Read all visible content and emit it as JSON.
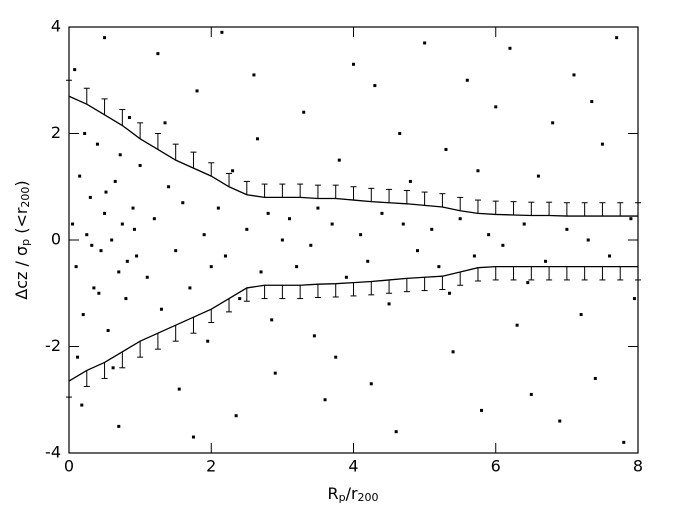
{
  "chart_data": {
    "type": "scatter",
    "xlabel": [
      {
        "text": "R"
      },
      {
        "text": "p",
        "sub": true
      },
      {
        "text": "/r"
      },
      {
        "text": "200",
        "sub": true
      }
    ],
    "ylabel": [
      {
        "text": "Δcz / σ"
      },
      {
        "text": "p",
        "sub": true
      },
      {
        "text": " (<r"
      },
      {
        "text": "200",
        "sub": true
      },
      {
        "text": ")"
      }
    ],
    "xlim": [
      0,
      8
    ],
    "ylim": [
      -4,
      4
    ],
    "xticks": [
      0,
      2,
      4,
      6,
      8
    ],
    "yticks": [
      -4,
      -2,
      0,
      2,
      4
    ],
    "color": "#000000",
    "x": [
      0.05,
      0.1,
      0.15,
      0.2,
      0.25,
      0.3,
      0.35,
      0.4,
      0.45,
      0.5,
      0.55,
      0.6,
      0.65,
      0.7,
      0.75,
      0.8,
      0.85,
      0.9,
      0.95,
      1.0,
      0.12,
      0.22,
      0.32,
      0.42,
      0.52,
      0.62,
      0.72,
      0.82,
      0.92,
      0.08,
      0.18,
      0.5,
      0.7,
      1.1,
      1.2,
      1.3,
      1.4,
      1.5,
      1.6,
      1.7,
      1.8,
      1.9,
      2.0,
      1.25,
      1.55,
      1.75,
      1.35,
      1.95,
      2.1,
      2.2,
      2.3,
      2.4,
      2.5,
      2.6,
      2.7,
      2.8,
      2.9,
      3.0,
      2.35,
      2.65,
      2.85,
      2.15,
      3.1,
      3.2,
      3.3,
      3.4,
      3.5,
      3.6,
      3.7,
      3.8,
      3.9,
      4.0,
      3.45,
      3.75,
      4.1,
      4.2,
      4.3,
      4.4,
      4.5,
      4.6,
      4.7,
      4.8,
      4.9,
      5.0,
      4.25,
      4.65,
      5.1,
      5.2,
      5.3,
      5.4,
      5.5,
      5.6,
      5.7,
      5.8,
      5.9,
      6.0,
      5.35,
      5.75,
      6.1,
      6.2,
      6.3,
      6.4,
      6.5,
      6.6,
      6.7,
      6.8,
      6.9,
      7.0,
      6.45,
      7.1,
      7.2,
      7.3,
      7.4,
      7.5,
      7.6,
      7.7,
      7.8,
      7.9,
      7.95,
      7.35
    ],
    "values": [
      0.3,
      -0.5,
      1.2,
      -1.4,
      0.1,
      0.8,
      -0.9,
      1.8,
      -0.2,
      0.5,
      -1.7,
      0.0,
      1.1,
      -0.6,
      0.3,
      -1.1,
      2.3,
      0.6,
      -0.3,
      1.4,
      -2.2,
      2.0,
      -0.1,
      -1.0,
      0.9,
      -2.4,
      1.6,
      -0.4,
      0.2,
      3.2,
      -3.1,
      3.8,
      -3.5,
      -0.7,
      0.4,
      -1.3,
      1.0,
      -0.2,
      0.7,
      -0.9,
      2.8,
      0.1,
      -0.5,
      3.5,
      -2.8,
      -3.7,
      2.2,
      -1.9,
      0.6,
      -0.3,
      1.3,
      -1.1,
      0.2,
      3.1,
      -0.6,
      0.5,
      -2.5,
      0.0,
      -3.3,
      1.9,
      -1.5,
      3.9,
      0.4,
      -0.5,
      2.4,
      -0.1,
      0.6,
      -3.0,
      0.3,
      1.5,
      -0.7,
      3.3,
      -1.8,
      -2.2,
      0.1,
      -0.4,
      2.9,
      0.5,
      -1.2,
      -3.6,
      0.3,
      1.1,
      -0.2,
      3.7,
      -2.7,
      2.0,
      0.2,
      -0.5,
      1.7,
      -2.1,
      0.4,
      3.0,
      -0.3,
      -3.2,
      0.1,
      2.5,
      -1.0,
      1.3,
      -0.1,
      3.6,
      -1.6,
      0.3,
      -2.9,
      1.2,
      -0.4,
      2.2,
      -3.4,
      0.2,
      -0.8,
      3.1,
      -1.4,
      0.0,
      -2.6,
      1.8,
      -0.3,
      3.8,
      -3.8,
      0.4,
      -1.1,
      2.6
    ],
    "lines": [
      {
        "side": "upper",
        "x": [
          0,
          0.25,
          0.5,
          0.75,
          1,
          1.25,
          1.5,
          1.75,
          2,
          2.25,
          2.5,
          2.75,
          3,
          3.25,
          3.5,
          3.75,
          4,
          4.25,
          4.5,
          4.75,
          5,
          5.25,
          5.5,
          5.75,
          6,
          6.25,
          6.5,
          6.75,
          7,
          7.25,
          7.5,
          7.75,
          8
        ],
        "values": [
          2.7,
          2.55,
          2.35,
          2.15,
          1.9,
          1.7,
          1.5,
          1.35,
          1.2,
          1.0,
          0.85,
          0.8,
          0.8,
          0.8,
          0.78,
          0.78,
          0.75,
          0.72,
          0.7,
          0.68,
          0.65,
          0.62,
          0.55,
          0.5,
          0.48,
          0.47,
          0.46,
          0.46,
          0.45,
          0.45,
          0.45,
          0.45,
          0.45
        ],
        "errors": [
          0.3,
          0.3,
          0.3,
          0.3,
          0.3,
          0.3,
          0.3,
          0.3,
          0.25,
          0.25,
          0.25,
          0.25,
          0.25,
          0.25,
          0.25,
          0.25,
          0.25,
          0.25,
          0.25,
          0.25,
          0.25,
          0.25,
          0.25,
          0.25,
          0.25,
          0.25,
          0.25,
          0.25,
          0.25,
          0.25,
          0.25,
          0.25,
          0.25
        ]
      },
      {
        "side": "lower",
        "x": [
          0,
          0.25,
          0.5,
          0.75,
          1,
          1.25,
          1.5,
          1.75,
          2,
          2.25,
          2.5,
          2.75,
          3,
          3.25,
          3.5,
          3.75,
          4,
          4.25,
          4.5,
          4.75,
          5,
          5.25,
          5.5,
          5.75,
          6,
          6.25,
          6.5,
          6.75,
          7,
          7.25,
          7.5,
          7.75,
          8
        ],
        "values": [
          -2.65,
          -2.45,
          -2.3,
          -2.1,
          -1.9,
          -1.75,
          -1.6,
          -1.45,
          -1.3,
          -1.1,
          -0.9,
          -0.85,
          -0.85,
          -0.85,
          -0.83,
          -0.82,
          -0.8,
          -0.78,
          -0.75,
          -0.72,
          -0.7,
          -0.68,
          -0.6,
          -0.52,
          -0.5,
          -0.5,
          -0.5,
          -0.5,
          -0.5,
          -0.5,
          -0.5,
          -0.5,
          -0.5
        ],
        "errors": [
          0.3,
          0.3,
          0.3,
          0.3,
          0.3,
          0.3,
          0.3,
          0.3,
          0.25,
          0.25,
          0.25,
          0.25,
          0.25,
          0.25,
          0.25,
          0.25,
          0.25,
          0.25,
          0.25,
          0.25,
          0.25,
          0.25,
          0.25,
          0.25,
          0.25,
          0.25,
          0.25,
          0.25,
          0.25,
          0.25,
          0.25,
          0.25,
          0.25
        ]
      }
    ]
  }
}
